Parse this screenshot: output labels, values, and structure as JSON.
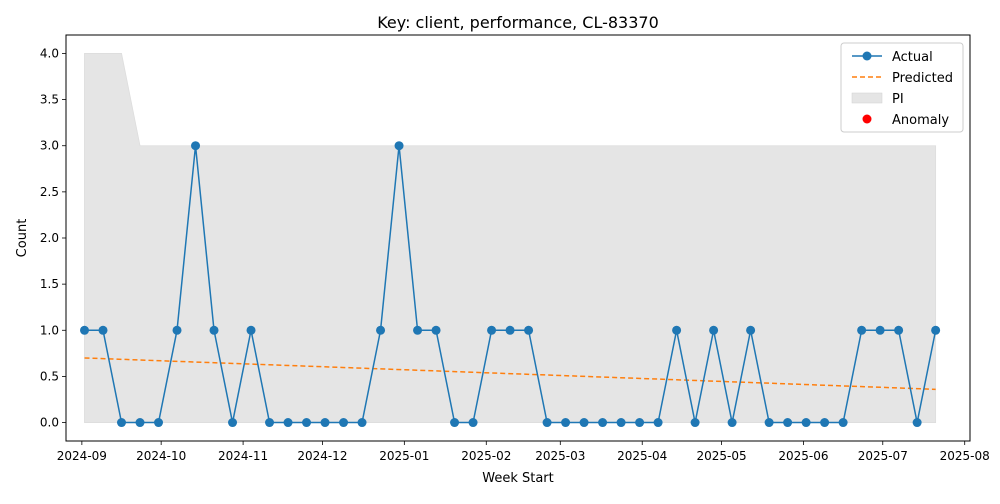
{
  "chart_data": {
    "type": "line",
    "title": "Key: client, performance, CL-83370",
    "xlabel": "Week Start",
    "ylabel": "Count",
    "x_start": "2024-09-02",
    "x_step_days": 7,
    "xlim": [
      "2024-08-26",
      "2025-08-03"
    ],
    "ylim": [
      -0.2,
      4.2
    ],
    "x_ticks": [
      {
        "date": "2024-09-01",
        "label": "2024-09"
      },
      {
        "date": "2024-10-01",
        "label": "2024-10"
      },
      {
        "date": "2024-11-01",
        "label": "2024-11"
      },
      {
        "date": "2024-12-01",
        "label": "2024-12"
      },
      {
        "date": "2025-01-01",
        "label": "2025-01"
      },
      {
        "date": "2025-02-01",
        "label": "2025-02"
      },
      {
        "date": "2025-03-01",
        "label": "2025-03"
      },
      {
        "date": "2025-04-01",
        "label": "2025-04"
      },
      {
        "date": "2025-05-01",
        "label": "2025-05"
      },
      {
        "date": "2025-06-01",
        "label": "2025-06"
      },
      {
        "date": "2025-07-01",
        "label": "2025-07"
      },
      {
        "date": "2025-08-01",
        "label": "2025-08"
      }
    ],
    "y_ticks": [
      {
        "value": 0.0,
        "label": "0.0"
      },
      {
        "value": 0.5,
        "label": "0.5"
      },
      {
        "value": 1.0,
        "label": "1.0"
      },
      {
        "value": 1.5,
        "label": "1.5"
      },
      {
        "value": 2.0,
        "label": "2.0"
      },
      {
        "value": 2.5,
        "label": "2.5"
      },
      {
        "value": 3.0,
        "label": "3.0"
      },
      {
        "value": 3.5,
        "label": "3.5"
      },
      {
        "value": 4.0,
        "label": "4.0"
      }
    ],
    "series": [
      {
        "name": "Actual",
        "kind": "line-marker",
        "color": "#1f77b4",
        "values": [
          1,
          1,
          0,
          0,
          0,
          1,
          3,
          1,
          0,
          1,
          0,
          0,
          0,
          0,
          0,
          0,
          1,
          3,
          1,
          1,
          0,
          0,
          1,
          1,
          1,
          0,
          0,
          0,
          0,
          0,
          0,
          0,
          1,
          0,
          1,
          0,
          1,
          0,
          0,
          0,
          0,
          0,
          1,
          1,
          1,
          0,
          1
        ]
      },
      {
        "name": "Predicted",
        "kind": "dashed-line",
        "color": "#ff7f0e",
        "start": 0.7,
        "end": 0.36
      },
      {
        "name": "PI",
        "kind": "band",
        "color": "#e5e5e5",
        "lower": 0,
        "upper": [
          4,
          4,
          4,
          3,
          3,
          3,
          3,
          3,
          3,
          3,
          3,
          3,
          3,
          3,
          3,
          3,
          3,
          3,
          3,
          3,
          3,
          3,
          3,
          3,
          3,
          3,
          3,
          3,
          3,
          3,
          3,
          3,
          3,
          3,
          3,
          3,
          3,
          3,
          3,
          3,
          3,
          3,
          3,
          3,
          3,
          3,
          3
        ]
      },
      {
        "name": "Anomaly",
        "kind": "scatter",
        "color": "#ff0000",
        "values": []
      }
    ],
    "legend_position": "top-right",
    "grid": false
  }
}
